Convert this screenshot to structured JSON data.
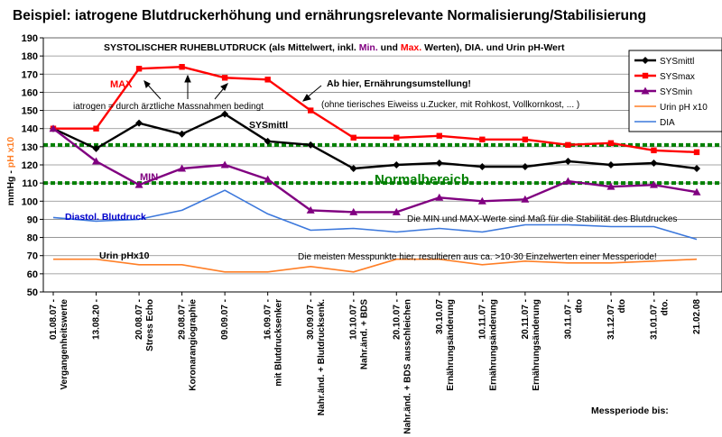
{
  "chart_data": {
    "type": "line",
    "title": "Beispiel: iatrogene Blutdruckerhöhung und  ernährungsrelevante Normalisierung/Stabilisierung",
    "subtitle": {
      "part1": "SYSTOLISCHER RUHEBLUTDRUCK (als Mittelwert, inkl. ",
      "min": "Min.",
      "part2": " und ",
      "max": "Max.",
      "part3": " Werten),  DIA.  und Urin pH-Wert"
    },
    "ylabel": {
      "mmhg": "mmHg -",
      "ph": " pH x10"
    },
    "xlabel": "Messperiode bis:",
    "ylim": [
      50,
      190
    ],
    "y_ticks": [
      50,
      60,
      70,
      80,
      90,
      100,
      110,
      120,
      130,
      140,
      150,
      160,
      170,
      180,
      190
    ],
    "grid": true,
    "legend_position": "top-right",
    "categories": [
      "01.08.07 - Vergangenheitswerte",
      "13.08.20 -",
      "20.08.07 - Stress Echo",
      "29.08.07 - Koronarangiographie",
      "09.09.07 -",
      "16.09.07 - mit Blutdrucksenker",
      "30.09.07 - Nahr.änd. + Blutdrucksenk.",
      "10.10.07 - Nahr.änd. + BDS",
      "20.10.07 - Nahr.änd. + BDS ausschleichen",
      "30.10.07 Ernährungsänderung",
      "10.11.07 - Ernährungsänderung",
      "20.11.07 - Ernährungsänderung",
      "30.11.07 -  dto",
      "31.12.07 -  dto",
      "31.01.07 -  dto.",
      "21.02.08"
    ],
    "series": [
      {
        "name": "SYSmittl",
        "color": "#000000",
        "marker": "diamond",
        "values": [
          140,
          129,
          143,
          137,
          148,
          133,
          131,
          118,
          120,
          121,
          119,
          119,
          122,
          120,
          121,
          118
        ]
      },
      {
        "name": "SYSmax",
        "color": "#ff0000",
        "marker": "square",
        "values": [
          140,
          140,
          173,
          174,
          168,
          167,
          150,
          135,
          135,
          136,
          134,
          134,
          131,
          132,
          128,
          127
        ]
      },
      {
        "name": "SYSmin",
        "color": "#800080",
        "marker": "triangle",
        "values": [
          140,
          122,
          109,
          118,
          120,
          112,
          95,
          94,
          94,
          102,
          100,
          101,
          111,
          108,
          109,
          105
        ]
      },
      {
        "name": "Urin pH x10",
        "color": "#ff7f27",
        "marker": "line",
        "values": [
          68,
          68,
          65,
          65,
          61,
          61,
          64,
          61,
          68,
          68,
          65,
          67,
          66,
          66,
          67,
          68
        ]
      },
      {
        "name": "DIA",
        "color": "#3c78dc",
        "marker": "line",
        "values": [
          91,
          89,
          90,
          95,
          106,
          93,
          84,
          85,
          83,
          85,
          83,
          87,
          87,
          86,
          86,
          79
        ]
      }
    ],
    "reference_lines": [
      {
        "value": 131,
        "color": "#008000"
      },
      {
        "value": 110,
        "color": "#008000"
      }
    ],
    "annotations": {
      "max": {
        "text": "MAX",
        "color": "#ff0000"
      },
      "min": {
        "text": "MIN",
        "color": "#800080"
      },
      "sysmittl": {
        "text": "SYSmittl",
        "color": "#000000"
      },
      "iatrogen": {
        "text": "iatrogen =    durch ärztliche Massnahmen bedingt",
        "color": "#000000"
      },
      "ab_hier": {
        "text": "Ab hier, Ernährungsumstellung!",
        "color": "#000000"
      },
      "ohne": {
        "text": "(ohne tierisches Eiweiss u.Zucker, mit Rohkost, Vollkornkost, ... )",
        "color": "#000000"
      },
      "normalbereich": {
        "text": "Normalbereich",
        "color": "#008000"
      },
      "min_max_note": {
        "text": "Die MIN und MAX-Werte sind Maß für die Stabilität des Blutdruckes",
        "color": "#000000"
      },
      "diastol": {
        "text": "Diastol. Blutdruck",
        "color": "#0000cc"
      },
      "urin": {
        "text": "Urin pHx10",
        "color": "#000000"
      },
      "messpunkte": {
        "text": "Die meisten Messpunkte hier, resultieren aus ca. >10-30 Einzelwerten einer Messperiode!",
        "color": "#000000"
      }
    }
  }
}
